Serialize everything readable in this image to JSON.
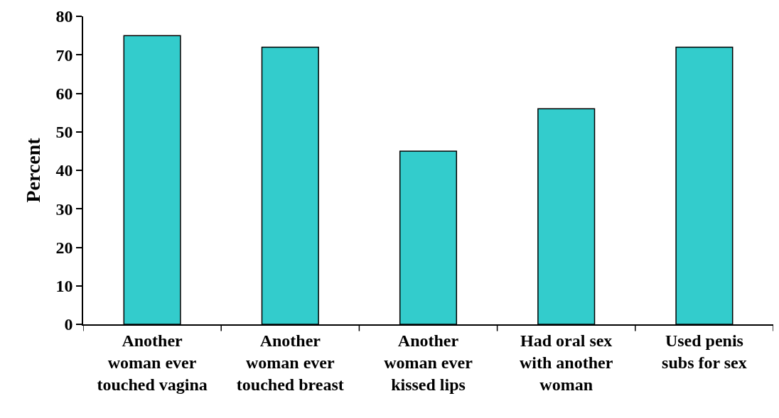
{
  "chart_data": {
    "type": "bar",
    "ylabel": "Percent",
    "categories": [
      "Another\nwoman ever\ntouched vagina",
      "Another\nwoman ever\ntouched breast",
      "Another\nwoman ever\nkissed lips",
      "Had oral sex\nwith another\nwoman",
      "Used penis\nsubs for sex"
    ],
    "values": [
      75,
      72,
      45,
      56,
      72
    ],
    "color": "#33cccc",
    "ylim": [
      0,
      80
    ],
    "yticks": [
      0,
      10,
      20,
      30,
      40,
      50,
      60,
      70,
      80
    ],
    "grid": false
  }
}
